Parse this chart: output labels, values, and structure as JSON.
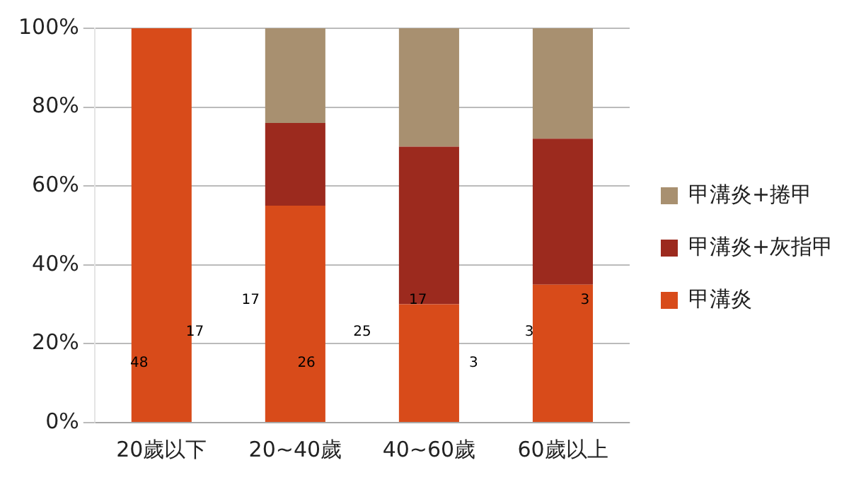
{
  "chart_data": {
    "type": "bar",
    "stacked": true,
    "categories": [
      "20歲以下",
      "20~40歲",
      "40~60歲",
      "60歲以上"
    ],
    "ylim": [
      0,
      100
    ],
    "yticks": [
      {
        "value": 0,
        "label": "0%"
      },
      {
        "value": 20,
        "label": "20%"
      },
      {
        "value": 40,
        "label": "40%"
      },
      {
        "value": 60,
        "label": "60%"
      },
      {
        "value": 80,
        "label": "80%"
      },
      {
        "value": 100,
        "label": "100%"
      }
    ],
    "grid": "y",
    "legend": "right",
    "series": [
      {
        "name": "甲溝炎",
        "color": "#d84b1a",
        "values": [
          100,
          55,
          30,
          35
        ]
      },
      {
        "name": "甲溝炎+灰指甲",
        "color": "#9c2a1e",
        "values": [
          0,
          21,
          40,
          37
        ]
      },
      {
        "name": "甲溝炎+捲甲",
        "color": "#a89070",
        "values": [
          0,
          24,
          30,
          28
        ]
      }
    ],
    "annotations": [
      "48",
      "17",
      "17",
      "26",
      "25",
      "17",
      "3",
      "3",
      "3"
    ]
  }
}
